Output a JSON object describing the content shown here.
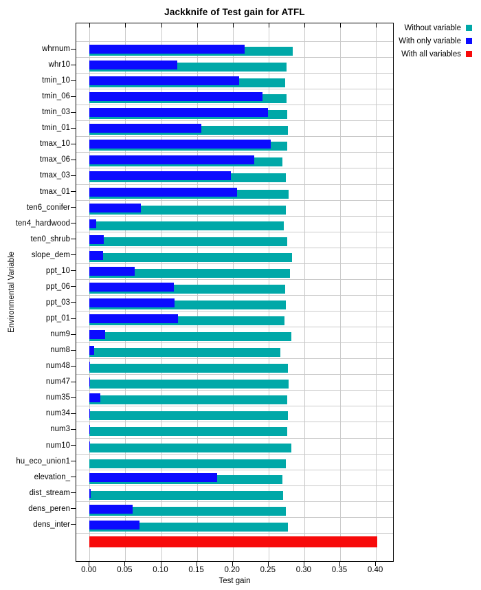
{
  "title": "Jackknife of Test gain for ATFL",
  "xlabel": "Test gain",
  "ylabel": "Environmental Variable",
  "x_tick_labels": [
    "0.00",
    "0.05",
    "0.10",
    "0.15",
    "0.20",
    "0.25",
    "0.30",
    "0.35",
    "0.40"
  ],
  "legend": [
    {
      "label": "Without variable",
      "color": "#00A8A8"
    },
    {
      "label": "With only variable",
      "color": "#0B0BFF"
    },
    {
      "label": "With all variables",
      "color": "#F70A0A"
    }
  ],
  "chart_data": {
    "type": "bar",
    "orientation": "horizontal",
    "title": "Jackknife of Test gain for ATFL",
    "xlabel": "Test gain",
    "ylabel": "Environmental Variable",
    "xlim": [
      -0.019,
      0.425
    ],
    "x_ticks": [
      0.0,
      0.05,
      0.1,
      0.15,
      0.2,
      0.25,
      0.3,
      0.35,
      0.4
    ],
    "grid": true,
    "legend_position": "top-right",
    "categories": [
      "whrnum",
      "whr10",
      "tmin_10",
      "tmin_06",
      "tmin_03",
      "tmin_01",
      "tmax_10",
      "tmax_06",
      "tmax_03",
      "tmax_01",
      "ten6_conifer",
      "ten4_hardwood",
      "ten0_shrub",
      "slope_dem",
      "ppt_10",
      "ppt_06",
      "ppt_03",
      "ppt_01",
      "num9",
      "num8",
      "num48",
      "num47",
      "num35",
      "num34",
      "num3",
      "num10",
      "hu_eco_union1",
      "elevation_",
      "dist_stream",
      "dens_peren",
      "dens_inter"
    ],
    "series": [
      {
        "name": "Without variable",
        "color": "#00A8A8",
        "values": [
          0.284,
          0.275,
          0.273,
          0.275,
          0.276,
          0.277,
          0.276,
          0.269,
          0.274,
          0.278,
          0.274,
          0.271,
          0.276,
          0.283,
          0.28,
          0.273,
          0.274,
          0.272,
          0.282,
          0.267,
          0.277,
          0.278,
          0.276,
          0.277,
          0.276,
          0.282,
          0.274,
          0.269,
          0.27,
          0.274,
          0.277
        ]
      },
      {
        "name": "With only variable",
        "color": "#0B0BFF",
        "values": [
          0.217,
          0.123,
          0.209,
          0.242,
          0.249,
          0.156,
          0.253,
          0.23,
          0.197,
          0.206,
          0.072,
          0.009,
          0.02,
          0.019,
          0.063,
          0.118,
          0.119,
          0.124,
          0.022,
          0.006,
          0.001,
          0.001,
          0.015,
          0.001,
          0.001,
          0.001,
          0.0,
          0.178,
          0.002,
          0.06,
          0.07
        ]
      },
      {
        "name": "With all variables",
        "color": "#F70A0A",
        "values": [
          0.402
        ],
        "note": "single unlabeled bottom row"
      }
    ]
  }
}
